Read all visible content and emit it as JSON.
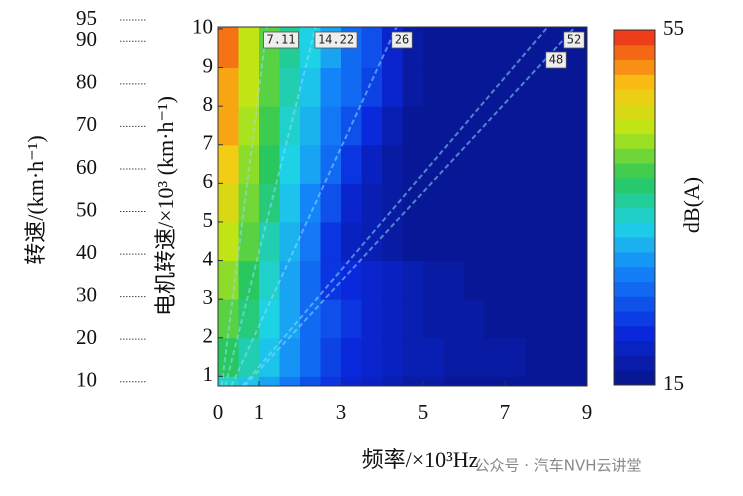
{
  "chart_data": {
    "type": "heatmap",
    "xlabel": "频率/×10³Hz",
    "ylabel": "电机转速/×10³ (km·h⁻¹)",
    "y2label": "转速/(km·h⁻¹)",
    "colorbar_label": "dB(A)",
    "watermark": "公众号 · 汽车NVH云讲堂",
    "xlim": [
      0,
      9
    ],
    "xticks": [
      0,
      1,
      3,
      5,
      7,
      9
    ],
    "ylim": [
      0.75,
      10.05
    ],
    "yticks": [
      1,
      2,
      3,
      4,
      5,
      6,
      7,
      8,
      9,
      10
    ],
    "y2lim": [
      9,
      95
    ],
    "y2ticks": [
      10,
      20,
      30,
      40,
      50,
      60,
      70,
      80,
      90,
      95
    ],
    "zlim": [
      15,
      55
    ],
    "zticks": [
      15,
      55
    ],
    "xbins": [
      0,
      0.5,
      1,
      1.5,
      2,
      2.5,
      3,
      3.5,
      4,
      4.5,
      5,
      5.5,
      6,
      6.5,
      7,
      7.5,
      8,
      8.5,
      9
    ],
    "ybins": [
      0.75,
      1,
      2,
      3,
      4,
      5,
      6,
      7,
      8,
      9,
      10.05
    ],
    "z": [
      [
        34,
        32,
        30,
        27,
        24,
        22,
        20,
        19,
        18,
        17,
        17,
        16,
        16,
        16,
        16,
        16,
        16,
        16
      ],
      [
        38,
        35,
        32,
        29,
        26,
        23,
        21,
        20,
        19,
        18,
        18,
        17,
        17,
        17,
        17,
        16,
        16,
        16
      ],
      [
        40,
        37,
        33,
        30,
        26,
        24,
        22,
        20,
        19,
        18,
        17,
        17,
        17,
        16,
        16,
        16,
        16,
        16
      ],
      [
        42,
        38,
        34,
        30,
        26,
        22,
        21,
        20,
        19,
        18,
        17,
        17,
        16,
        16,
        16,
        16,
        16,
        16
      ],
      [
        44,
        40,
        35,
        31,
        27,
        22,
        19,
        18,
        17,
        16,
        16,
        16,
        16,
        16,
        16,
        16,
        16,
        16
      ],
      [
        46,
        41,
        37,
        32,
        28,
        24,
        20,
        18,
        17,
        16,
        16,
        16,
        16,
        16,
        16,
        16,
        16,
        16
      ],
      [
        48,
        42,
        38,
        33,
        30,
        26,
        22,
        19,
        17,
        16,
        16,
        16,
        16,
        16,
        16,
        16,
        16,
        16
      ],
      [
        50,
        43,
        39,
        34,
        31,
        27,
        24,
        21,
        18,
        16,
        16,
        16,
        16,
        16,
        16,
        16,
        16,
        16
      ],
      [
        50,
        44,
        40,
        35,
        32,
        28,
        26,
        23,
        20,
        17,
        16,
        16,
        16,
        16,
        16,
        16,
        16,
        16
      ],
      [
        52,
        44,
        40,
        36,
        33,
        30,
        26,
        24,
        20,
        17,
        16,
        16,
        16,
        16,
        16,
        16,
        16,
        16
      ]
    ],
    "orders": [
      7.11,
      14.22,
      26,
      52,
      48
    ]
  }
}
